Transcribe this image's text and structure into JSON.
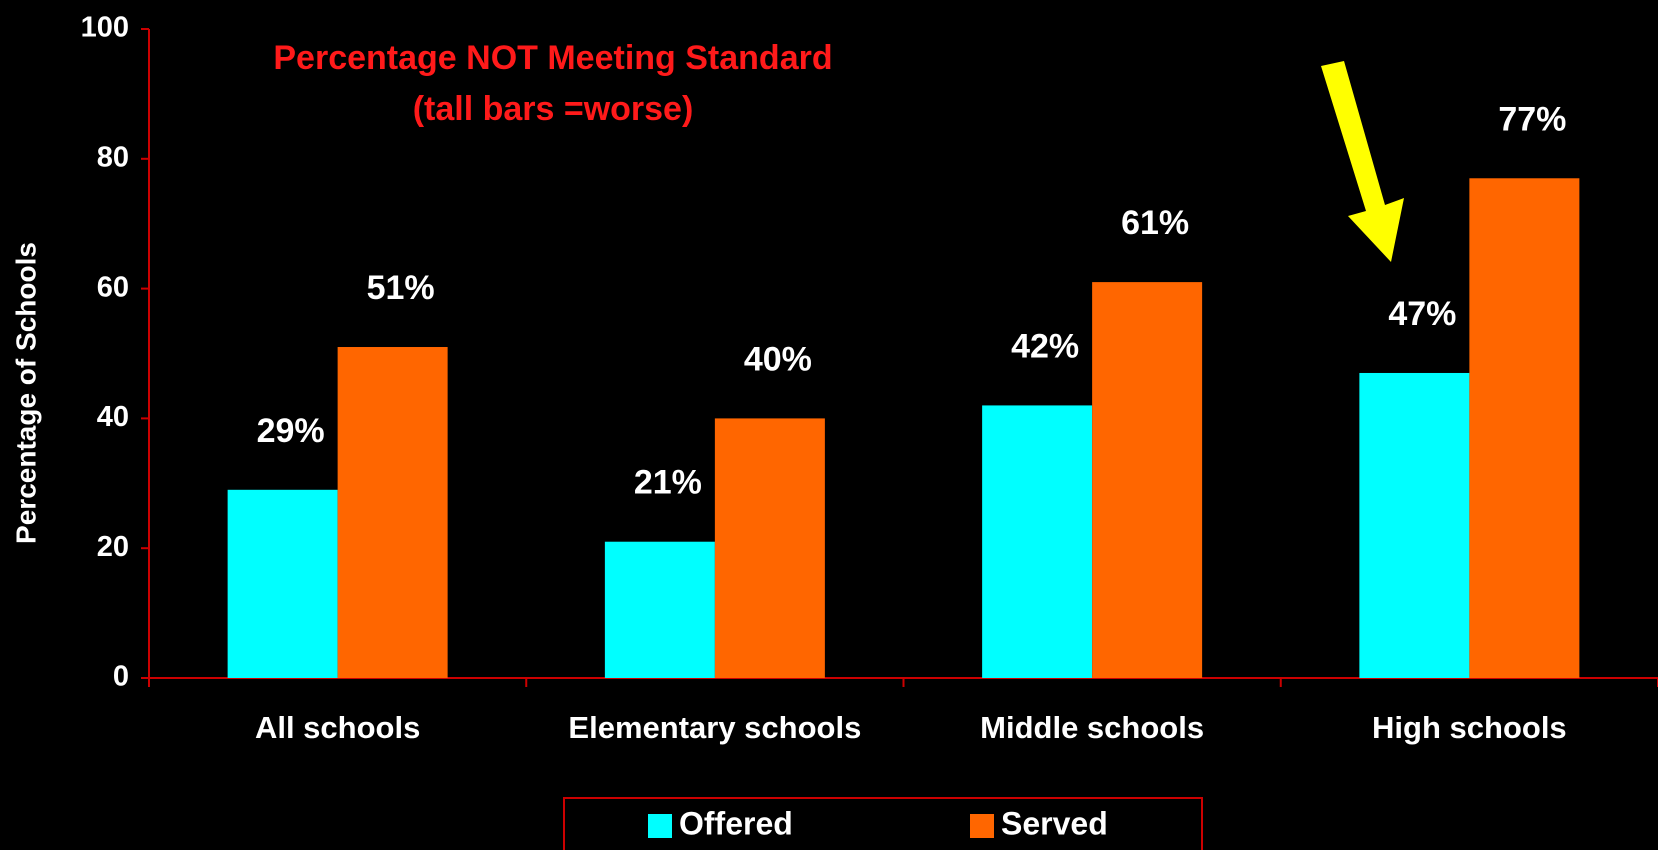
{
  "chart_data": {
    "type": "bar",
    "title": "Percentage NOT Meeting Standard",
    "subtitle": "(tall bars =worse)",
    "y_label": "Percentage of Schools",
    "categories": [
      "All schools",
      "Elementary schools",
      "Middle schools",
      "High schools"
    ],
    "series": [
      {
        "name": "Offered",
        "color": "#00ffff",
        "values": [
          29,
          21,
          42,
          47
        ],
        "value_labels": [
          "29%",
          "21%",
          "42%",
          "47%"
        ]
      },
      {
        "name": "Served",
        "color": "#ff6600",
        "values": [
          51,
          40,
          61,
          77
        ],
        "value_labels": [
          "51%",
          "40%",
          "61%",
          "77%"
        ]
      }
    ],
    "ylim": [
      0,
      100
    ],
    "yticks": [
      0,
      20,
      40,
      60,
      80,
      100
    ],
    "grid": false,
    "legend": "bottom"
  }
}
